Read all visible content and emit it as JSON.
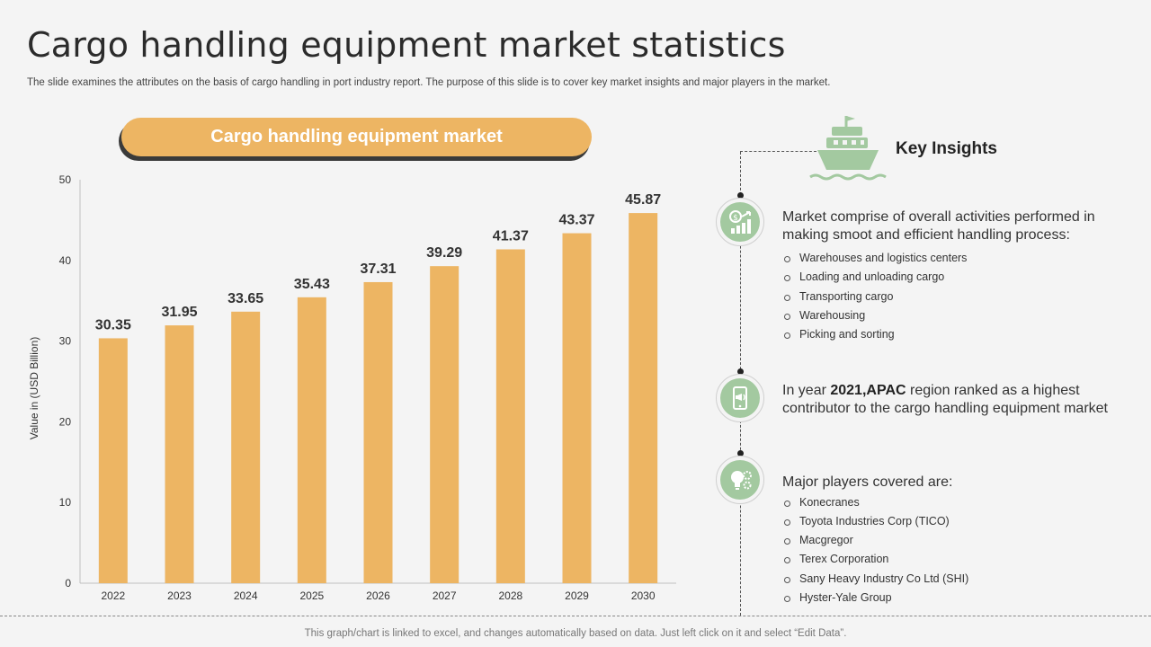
{
  "slide": {
    "title": "Cargo handling equipment market statistics",
    "subtitle": "The slide examines the attributes on the basis of cargo handling in port industry report. The purpose of this slide is to cover key market insights and major players in the market.",
    "footer": "This graph/chart is linked to excel, and changes automatically based on data. Just left click on it and select “Edit Data”."
  },
  "chart_data": {
    "type": "bar",
    "title": "Cargo handling equipment market",
    "categories": [
      "2022",
      "2023",
      "2024",
      "2025",
      "2026",
      "2027",
      "2028",
      "2029",
      "2030"
    ],
    "values": [
      30.35,
      31.95,
      33.65,
      35.43,
      37.31,
      39.29,
      41.37,
      43.37,
      45.87
    ],
    "value_labels": [
      "30.35",
      "31.95",
      "33.65",
      "35.43",
      "37.31",
      "39.29",
      "41.37",
      "43.37",
      "45.87"
    ],
    "ylabel": "Value in (USD Billion)",
    "xlabel": "",
    "ylim": [
      0,
      50
    ],
    "yticks": [
      0,
      10,
      20,
      30,
      40,
      50
    ],
    "grid": false,
    "bar_color": "#edb563"
  },
  "insights": {
    "heading": "Key Insights",
    "block1": {
      "text": "Market comprise of overall activities performed in making smoot and efficient handling process:",
      "items": [
        "Warehouses and logistics centers",
        "Loading and unloading cargo",
        "Transporting cargo",
        "Warehousing",
        "Picking and sorting"
      ]
    },
    "block2": {
      "pre": "In year ",
      "bold": "2021,APAC",
      "post": " region ranked as a highest contributor to the cargo handling equipment market"
    },
    "block3": {
      "text": "Major players covered are:",
      "items": [
        "Konecranes",
        "Toyota Industries Corp (TICO)",
        "Macgregor",
        "Terex Corporation",
        "Sany Heavy Industry Co Ltd (SHI)",
        "Hyster-Yale Group"
      ]
    }
  },
  "icons": {
    "ship": "ship-icon",
    "money_growth": "money-growth-icon",
    "mobile_marketing": "mobile-megaphone-icon",
    "ideas_gears": "lightbulb-gears-icon",
    "accent": "#a3c9a0"
  }
}
